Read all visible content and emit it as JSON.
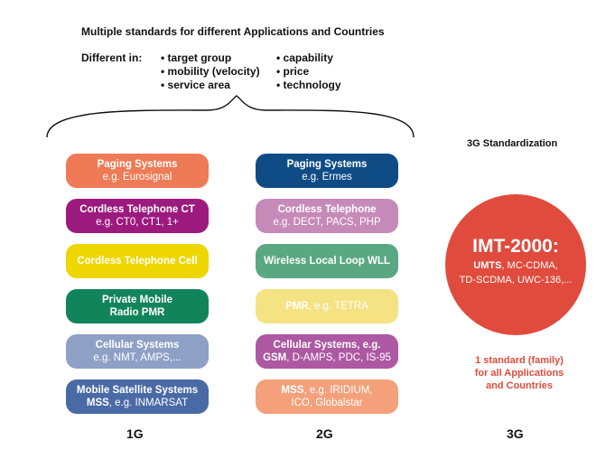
{
  "header": {
    "title": "Multiple standards for different Applications and Countries",
    "different_in": "Different in:",
    "bullets_left": [
      "target group",
      "mobility (velocity)",
      "service area"
    ],
    "bullets_right": [
      "capability",
      "price",
      "technology"
    ]
  },
  "columns": {
    "g1": {
      "label": "1G",
      "boxes": [
        {
          "title": "Paging Systems",
          "sub": "e.g. Eurosignal",
          "color": "#ee7b55"
        },
        {
          "title": "Cordless Telephone CT",
          "sub": "e.g. CT0, CT1, 1+",
          "color": "#9c1a7d"
        },
        {
          "title": "Cordless Telephone Cell",
          "sub": "",
          "color": "#eed600"
        },
        {
          "title": "Private Mobile",
          "sub": "Radio PMR",
          "color": "#12845c"
        },
        {
          "title": "Cellular Systems",
          "sub": "e.g. NMT, AMPS,...",
          "color": "#8fa0c6"
        },
        {
          "title": "Mobile Satellite Systems",
          "sub_bold": "MSS",
          "sub": ", e.g. INMARSAT",
          "color": "#4a6aa5"
        }
      ]
    },
    "g2": {
      "label": "2G",
      "boxes": [
        {
          "title": "Paging Systems",
          "sub": "e.g. Ermes",
          "color": "#0f4c86"
        },
        {
          "title": "Cordless Telephone",
          "sub": "e.g. DECT, PACS, PHP",
          "color": "#c68ab9"
        },
        {
          "title": "Wireless Local Loop WLL",
          "sub": "",
          "color": "#5aa882"
        },
        {
          "title_bold": "PMR",
          "title": ", e.g. TETRA",
          "sub": "",
          "color": "#f4e283"
        },
        {
          "title": "Cellular Systems, e.g.",
          "sub_bold": "GSM",
          "sub": ", D-AMPS, PDC, IS-95",
          "color": "#ad58a2"
        },
        {
          "title_bold": "MSS",
          "title": ", e.g. IRIDIUM,",
          "sub": "ICO, Globalstar",
          "color": "#f4a07b"
        }
      ]
    },
    "g3": {
      "label": "3G",
      "heading": "3G Standardization",
      "circle_title": "IMT-2000:",
      "circle_line1_bold": "UMTS",
      "circle_line1": ", MC-CDMA,",
      "circle_line2": "TD-SCDMA, UWC-136,...",
      "circle_color": "#e04b3d",
      "note": [
        "1 standard (family)",
        "for all Applications",
        "and Countries"
      ]
    }
  }
}
